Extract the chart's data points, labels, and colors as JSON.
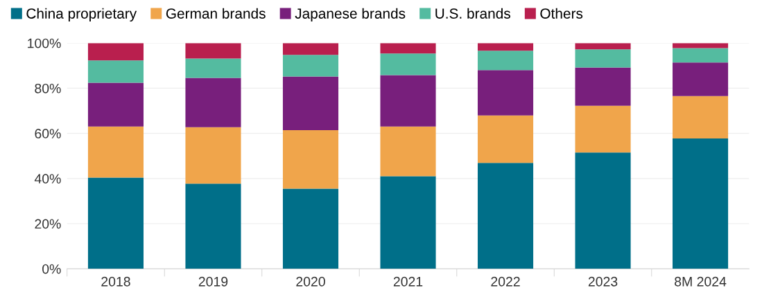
{
  "chart_data": {
    "type": "bar",
    "stacked": true,
    "categories": [
      "2018",
      "2019",
      "2020",
      "2021",
      "2022",
      "2023",
      "8M 2024"
    ],
    "series": [
      {
        "name": "China proprietary",
        "color": "#006f89",
        "values": [
          40.4,
          37.7,
          35.5,
          41.0,
          46.9,
          51.5,
          57.7
        ]
      },
      {
        "name": "German brands",
        "color": "#f0a54b",
        "values": [
          22.6,
          25.0,
          25.9,
          22.0,
          21.0,
          20.7,
          18.8
        ]
      },
      {
        "name": "Japanese brands",
        "color": "#781f7c",
        "values": [
          19.4,
          21.9,
          23.8,
          22.8,
          20.1,
          17.0,
          14.9
        ]
      },
      {
        "name": "U.S. brands",
        "color": "#54bba0",
        "values": [
          9.9,
          8.6,
          9.6,
          9.6,
          8.6,
          8.0,
          6.4
        ]
      },
      {
        "name": "Others",
        "color": "#b91f4e",
        "values": [
          7.7,
          6.8,
          5.2,
          4.6,
          3.4,
          2.8,
          2.2
        ]
      }
    ],
    "ylim": [
      0,
      100
    ],
    "yticks": [
      {
        "value": 0,
        "label": "0%"
      },
      {
        "value": 20,
        "label": "20%"
      },
      {
        "value": 40,
        "label": "40%"
      },
      {
        "value": 60,
        "label": "60%"
      },
      {
        "value": 80,
        "label": "80%"
      },
      {
        "value": 100,
        "label": "100%"
      }
    ],
    "grid": "y",
    "legend": "top left"
  }
}
